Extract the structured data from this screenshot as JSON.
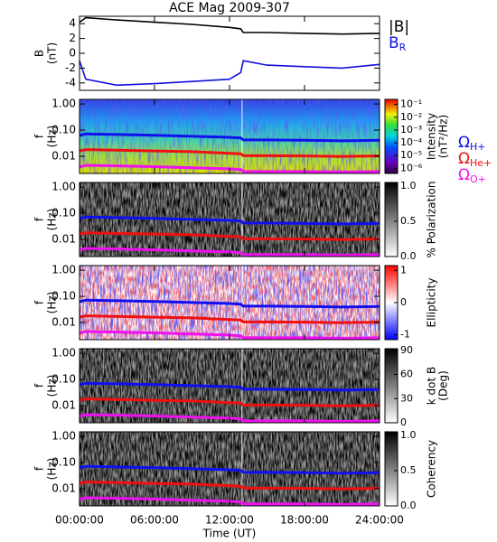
{
  "chart_data": [
    {
      "type": "line",
      "title": "ACE Mag 2009-307",
      "ylabel": [
        "B",
        "(nT)"
      ],
      "x": [
        0,
        0.5,
        3,
        6,
        9,
        12,
        12.9,
        13.1,
        15,
        18,
        21,
        24
      ],
      "xlim": [
        0,
        24
      ],
      "ylim": [
        -5,
        5
      ],
      "yticks": [
        -4,
        -2,
        0,
        2,
        4
      ],
      "series": [
        {
          "name": "|B|",
          "color": "#000000",
          "values": [
            4.2,
            4.8,
            4.5,
            4.2,
            3.9,
            3.5,
            3.3,
            2.8,
            2.8,
            2.7,
            2.6,
            2.7
          ]
        },
        {
          "name": "B",
          "name_sub": "R",
          "color": "#1010e0",
          "values": [
            -1.0,
            -3.5,
            -4.3,
            -4.1,
            -3.8,
            -3.5,
            -2.6,
            -1.0,
            -1.6,
            -1.8,
            -2.0,
            -1.5
          ]
        }
      ]
    },
    {
      "type": "spectrogram",
      "ylabel": [
        "f",
        "(Hz)"
      ],
      "ylog": true,
      "colormap": "rainbow",
      "x": [
        0,
        0.5,
        3,
        6,
        9,
        12,
        12.9,
        13.1,
        15,
        18,
        21,
        24
      ],
      "xlim": [
        0,
        24
      ],
      "ylim": [
        0.0022,
        1.5
      ],
      "yticks": [
        {
          "value": 1,
          "label": "1.00"
        },
        {
          "value": 0.1,
          "label": "0.10"
        },
        0.01
      ],
      "colorbar": {
        "label": [
          "Intensity",
          "(nT²/Hz)"
        ],
        "log": true,
        "lim": [
          4e-07,
          0.25
        ],
        "ticks": [
          {
            "value": 0.1,
            "label": "10⁻¹"
          },
          {
            "value": 0.01,
            "label": "10⁻²"
          },
          {
            "value": 0.001,
            "label": "10⁻³"
          },
          {
            "value": 0.0001,
            "label": "10⁻⁴"
          },
          {
            "value": 1e-05,
            "label": "10⁻⁵"
          },
          {
            "value": 1e-06,
            "label": "10⁻⁶"
          }
        ]
      },
      "series": [
        {
          "name": "Ω",
          "name_sub": "H+",
          "color": "#1010f0",
          "values": [
            0.062,
            0.072,
            0.068,
            0.063,
            0.058,
            0.053,
            0.05,
            0.042,
            0.042,
            0.041,
            0.039,
            0.041
          ]
        },
        {
          "name": "Ω",
          "name_sub": "He+",
          "color": "#f01010",
          "values": [
            0.016,
            0.018,
            0.017,
            0.016,
            0.015,
            0.013,
            0.0125,
            0.0105,
            0.0105,
            0.0103,
            0.0098,
            0.0103
          ]
        },
        {
          "name": "Ω",
          "name_sub": "O+",
          "color": "#f010f0",
          "values": [
            0.0039,
            0.0045,
            0.0043,
            0.004,
            0.0036,
            0.0033,
            0.0031,
            0.0026,
            0.0026,
            0.0026,
            0.0025,
            0.0026
          ]
        }
      ]
    },
    {
      "type": "spectrogram",
      "ylabel": [
        "f",
        "(Hz)"
      ],
      "ylog": true,
      "colormap": "gray",
      "x": [
        0,
        0.5,
        3,
        6,
        9,
        12,
        12.9,
        13.1,
        15,
        18,
        21,
        24
      ],
      "xlim": [
        0,
        24
      ],
      "ylim": [
        0.0022,
        1.5
      ],
      "yticks": [
        {
          "value": 1,
          "label": "1.00"
        },
        {
          "value": 0.1,
          "label": "0.10"
        },
        0.01
      ],
      "colorbar": {
        "label": [
          "% Polarization"
        ],
        "lim": [
          0,
          1.05
        ],
        "ticks": [
          {
            "value": 0,
            "label": "0.0"
          },
          0.5,
          {
            "value": 1,
            "label": "1.0"
          }
        ]
      },
      "series": [
        {
          "color": "#1010f0",
          "values": [
            0.062,
            0.072,
            0.068,
            0.063,
            0.058,
            0.053,
            0.05,
            0.042,
            0.042,
            0.041,
            0.039,
            0.041
          ]
        },
        {
          "color": "#f01010",
          "values": [
            0.016,
            0.018,
            0.017,
            0.016,
            0.015,
            0.013,
            0.0125,
            0.0105,
            0.0105,
            0.0103,
            0.0098,
            0.0103
          ]
        },
        {
          "color": "#f010f0",
          "values": [
            0.0039,
            0.0045,
            0.0043,
            0.004,
            0.0036,
            0.0033,
            0.0031,
            0.0026,
            0.0026,
            0.0026,
            0.0025,
            0.0026
          ]
        }
      ]
    },
    {
      "type": "spectrogram",
      "ylabel": [
        "f",
        "(Hz)"
      ],
      "ylog": true,
      "colormap": "bwr",
      "x": [
        0,
        0.5,
        3,
        6,
        9,
        12,
        12.9,
        13.1,
        15,
        18,
        21,
        24
      ],
      "xlim": [
        0,
        24
      ],
      "ylim": [
        0.0022,
        1.5
      ],
      "yticks": [
        {
          "value": 1,
          "label": "1.00"
        },
        {
          "value": 0.1,
          "label": "0.10"
        },
        0.01
      ],
      "colorbar": {
        "label": [
          "Ellipticity"
        ],
        "lim": [
          -1.15,
          1.15
        ],
        "ticks": [
          -1,
          0,
          1
        ]
      },
      "series": [
        {
          "color": "#1010f0",
          "values": [
            0.062,
            0.072,
            0.068,
            0.063,
            0.058,
            0.053,
            0.05,
            0.042,
            0.042,
            0.041,
            0.039,
            0.041
          ]
        },
        {
          "color": "#f01010",
          "values": [
            0.016,
            0.018,
            0.017,
            0.016,
            0.015,
            0.013,
            0.0125,
            0.0105,
            0.0105,
            0.0103,
            0.0098,
            0.0103
          ]
        },
        {
          "color": "#f010f0",
          "values": [
            0.0039,
            0.0045,
            0.0043,
            0.004,
            0.0036,
            0.0033,
            0.0031,
            0.0026,
            0.0026,
            0.0026,
            0.0025,
            0.0026
          ]
        }
      ]
    },
    {
      "type": "spectrogram",
      "ylabel": [
        "f",
        "(Hz)"
      ],
      "ylog": true,
      "colormap": "gray",
      "x": [
        0,
        0.5,
        3,
        6,
        9,
        12,
        12.9,
        13.1,
        15,
        18,
        21,
        24
      ],
      "xlim": [
        0,
        24
      ],
      "ylim": [
        0.0022,
        1.5
      ],
      "yticks": [
        {
          "value": 1,
          "label": "1.00"
        },
        {
          "value": 0.1,
          "label": "0.10"
        },
        0.01
      ],
      "colorbar": {
        "label": [
          "k dot B",
          "(Deg)"
        ],
        "lim": [
          0,
          92
        ],
        "ticks": [
          0,
          30,
          60,
          90
        ]
      },
      "series": [
        {
          "color": "#1010f0",
          "values": [
            0.062,
            0.072,
            0.068,
            0.063,
            0.058,
            0.053,
            0.05,
            0.042,
            0.042,
            0.041,
            0.039,
            0.041
          ]
        },
        {
          "color": "#f01010",
          "values": [
            0.016,
            0.018,
            0.017,
            0.016,
            0.015,
            0.013,
            0.0125,
            0.0105,
            0.0105,
            0.0103,
            0.0098,
            0.0103
          ]
        },
        {
          "color": "#f010f0",
          "values": [
            0.0039,
            0.0045,
            0.0043,
            0.004,
            0.0036,
            0.0033,
            0.0031,
            0.0026,
            0.0026,
            0.0026,
            0.0025,
            0.0026
          ]
        }
      ]
    },
    {
      "type": "spectrogram",
      "ylabel": [
        "f",
        "(Hz)"
      ],
      "ylog": true,
      "colormap": "gray",
      "x": [
        0,
        0.5,
        3,
        6,
        9,
        12,
        12.9,
        13.1,
        15,
        18,
        21,
        24
      ],
      "xlim": [
        0,
        24
      ],
      "ylim": [
        0.0022,
        1.5
      ],
      "yticks": [
        {
          "value": 1,
          "label": "1.00"
        },
        {
          "value": 0.1,
          "label": "0.10"
        },
        0.01
      ],
      "xticks": [
        {
          "value": 0,
          "label": "00:00:00"
        },
        {
          "value": 6,
          "label": "06:00:00"
        },
        {
          "value": 12,
          "label": "12:00:00"
        },
        {
          "value": 18,
          "label": "18:00:00"
        },
        {
          "value": 24,
          "label": "24:00:00"
        }
      ],
      "xlabel": "Time (UT)",
      "colorbar": {
        "label": [
          "Coherency"
        ],
        "lim": [
          0,
          1.05
        ],
        "ticks": [
          {
            "value": 0,
            "label": "0.0"
          },
          0.5,
          {
            "value": 1,
            "label": "1.0"
          }
        ]
      },
      "series": [
        {
          "color": "#1010f0",
          "values": [
            0.062,
            0.072,
            0.068,
            0.063,
            0.058,
            0.053,
            0.05,
            0.042,
            0.042,
            0.041,
            0.039,
            0.041
          ]
        },
        {
          "color": "#f01010",
          "values": [
            0.016,
            0.018,
            0.017,
            0.016,
            0.015,
            0.013,
            0.0125,
            0.0105,
            0.0105,
            0.0103,
            0.0098,
            0.0103
          ]
        },
        {
          "color": "#f010f0",
          "values": [
            0.0039,
            0.0045,
            0.0043,
            0.004,
            0.0036,
            0.0033,
            0.0031,
            0.0026,
            0.0026,
            0.0026,
            0.0025,
            0.0026
          ]
        }
      ]
    }
  ]
}
